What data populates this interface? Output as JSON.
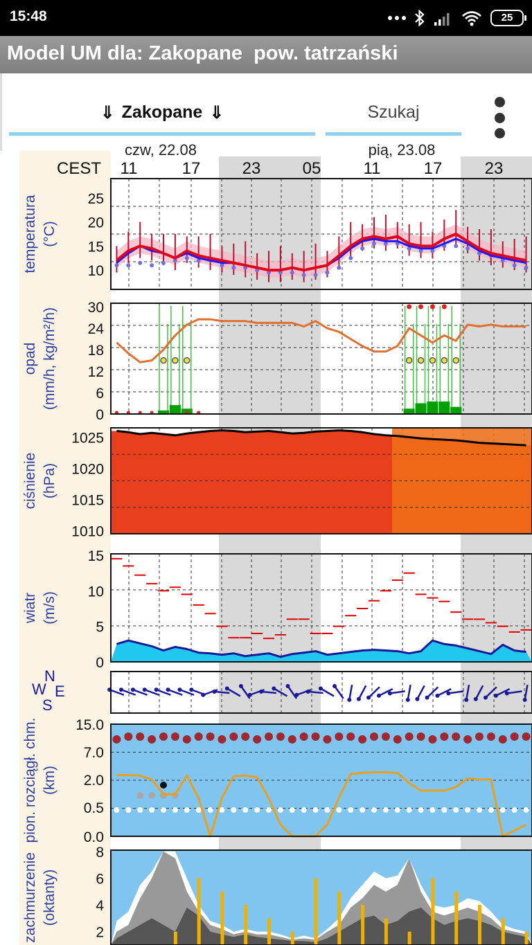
{
  "status_bar": {
    "time": "15:48",
    "battery": "25",
    "icons": [
      "more-dots-icon",
      "bluetooth-icon",
      "signal-icon",
      "wifi-icon",
      "battery-icon"
    ]
  },
  "app_bar": {
    "title": "Model UM dla: Zakopane  pow. tatrzański"
  },
  "controls": {
    "location_arrow_left": "⇓",
    "location_label": "Zakopane",
    "location_arrow_right": "⇓",
    "search_label": "Szukaj",
    "menu_icon": "overflow-menu-icon"
  },
  "chart_data": {
    "type": "line",
    "timezone_label": "CEST",
    "date_header_fragments": [
      "czw, 22.08",
      "pią, 23.08"
    ],
    "time_tick_labels": [
      "11",
      "17",
      "23",
      "05",
      "11",
      "17",
      "23"
    ],
    "panels": [
      {
        "name": "temperature",
        "ylabel": [
          "temperatura",
          "(°C)"
        ],
        "yticks": [
          "25",
          "20",
          "15",
          "10"
        ],
        "ylim": [
          6,
          29
        ],
        "series": [
          {
            "name": "",
            "color": "#e0001c",
            "values": [
              12.0,
              14.0,
              15.0,
              14.5,
              13.5,
              12.5,
              14.0,
              13.0,
              12.5,
              12.0,
              11.5,
              11.0,
              10.5,
              10.0,
              10.0,
              10.5,
              10.0,
              10.5,
              11.0,
              13.0,
              15.0,
              16.5,
              17.0,
              16.5,
              17.0,
              15.5,
              15.0,
              15.0,
              16.5,
              17.5,
              16.0,
              14.5,
              13.5,
              13.0,
              12.5,
              12.0
            ]
          },
          {
            "name": "",
            "color": "#1a1aff",
            "values": [
              11.5,
              13.5,
              15.0,
              14.0,
              13.5,
              12.5,
              13.5,
              12.5,
              12.0,
              11.5,
              11.5,
              11.0,
              10.5,
              10.0,
              10.0,
              10.5,
              10.0,
              10.5,
              11.0,
              12.5,
              14.5,
              16.0,
              16.5,
              16.0,
              16.0,
              15.0,
              14.5,
              14.5,
              15.5,
              16.5,
              15.5,
              14.0,
              13.0,
              12.5,
              12.0,
              11.5
            ]
          },
          {
            "name": "",
            "color": "#6666dd",
            "values": [
              11.0,
              11.0,
              11.5,
              11.0,
              11.5,
              12.0,
              12.5,
              12.0,
              12.0,
              11.0,
              10.5,
              10.5,
              10.0,
              9.5,
              9.5,
              9.5,
              9.0,
              9.0,
              9.5,
              10.5,
              12.5,
              14.5,
              15.5,
              15.5,
              15.5,
              14.5,
              14.0,
              14.0,
              15.0,
              15.0,
              14.5,
              13.5,
              13.0,
              12.0,
              11.0,
              10.5
            ]
          }
        ]
      },
      {
        "name": "precipitation",
        "ylabel": [
          "opad",
          "(mm/h, kg/m²/h)"
        ],
        "yticks": [
          "30",
          "24",
          "18",
          "12",
          "6",
          "0"
        ],
        "ylim": [
          0,
          31
        ],
        "series": [
          {
            "name": "",
            "color": "#e07030",
            "values": [
              20,
              17,
              14.5,
              15,
              18,
              22,
              25,
              26.5,
              26.5,
              26,
              26,
              26,
              25.5,
              25.5,
              25.5,
              25.5,
              24.5,
              26,
              24,
              23,
              21,
              19,
              17.5,
              17.5,
              19,
              24,
              22,
              20,
              22,
              20.5,
              25,
              24.5,
              25,
              24.5,
              24.5,
              24.5
            ]
          },
          {
            "name": "",
            "color": "#00a000",
            "values": [
              0,
              0,
              0,
              0,
              1.0,
              2.5,
              1.5,
              0,
              0,
              0,
              0,
              0,
              0,
              0,
              0,
              0,
              0,
              0,
              0,
              0,
              0,
              0,
              0,
              0,
              0,
              1.5,
              3.0,
              3.5,
              3.5,
              2.0,
              0,
              0,
              0,
              0,
              0,
              0
            ]
          }
        ]
      },
      {
        "name": "pressure",
        "ylabel": [
          "ciśnienie",
          "(hPa)"
        ],
        "yticks": [
          "1025",
          "1020",
          "1015",
          "1010"
        ],
        "ylim": [
          1009.5,
          1026.5
        ],
        "series": [
          {
            "name": "",
            "color": "#000000",
            "values": [
              1026.0,
              1025.8,
              1025.5,
              1025.7,
              1025.5,
              1025.3,
              1025.6,
              1025.8,
              1026.0,
              1026.1,
              1026.0,
              1025.8,
              1025.9,
              1026.0,
              1025.8,
              1025.6,
              1025.7,
              1025.9,
              1026.0,
              1026.1,
              1026.0,
              1025.8,
              1025.5,
              1025.3,
              1025.2,
              1025.0,
              1024.8,
              1024.7,
              1024.6,
              1024.5,
              1024.3,
              1024.1,
              1024.0,
              1023.9,
              1023.8,
              1023.7
            ]
          }
        ]
      },
      {
        "name": "wind",
        "ylabel": [
          "wiatr",
          "(m/s)"
        ],
        "yticks": [
          "15",
          "10",
          "5",
          "0"
        ],
        "ylim": [
          0,
          15.2
        ],
        "series": [
          {
            "name": "",
            "color": "#e00000",
            "values": [
              14.5,
              13.5,
              12.2,
              11.0,
              10.0,
              10.5,
              9.5,
              8.0,
              6.8,
              5.0,
              3.4,
              3.4,
              4.0,
              3.3,
              3.8,
              6.0,
              6.0,
              4.0,
              4.0,
              5.0,
              6.5,
              7.5,
              8.6,
              10.0,
              11.5,
              12.5,
              9.5,
              9.0,
              8.5,
              7.0,
              6.0,
              6.0,
              5.5,
              5.0,
              4.2,
              4.5
            ]
          },
          {
            "name": "",
            "color": "#1a1a99",
            "values": [
              2.5,
              3.0,
              2.6,
              2.2,
              1.6,
              2.1,
              1.8,
              1.3,
              1.2,
              1.0,
              1.2,
              0.8,
              1.0,
              1.2,
              0.7,
              1.1,
              1.3,
              1.5,
              1.0,
              1.2,
              1.4,
              1.6,
              1.7,
              1.6,
              1.5,
              1.2,
              1.5,
              3.0,
              2.5,
              2.3,
              1.9,
              1.5,
              1.1,
              2.4,
              1.6,
              1.4
            ]
          }
        ]
      },
      {
        "name": "wind-direction",
        "compass_labels": [
          "W",
          "N",
          "S",
          "E"
        ]
      },
      {
        "name": "cloud-vertical-extent",
        "ylabel": [
          "pion. rozciągł. chm.",
          "(km)"
        ],
        "yticks": [
          "15.0",
          "7.0",
          "2.0",
          "0.5",
          "0.0"
        ],
        "series": [
          {
            "name": "",
            "color": "#e8a020",
            "values": [
              2.8,
              2.8,
              2.7,
              2.0,
              1.2,
              1.2,
              2.7,
              1.0,
              0.0,
              1.0,
              2.6,
              2.7,
              2.4,
              1.0,
              0.2,
              0.0,
              0.0,
              0.0,
              0.2,
              1.0,
              3.0,
              3.2,
              3.3,
              3.3,
              3.2,
              1.8,
              1.4,
              1.4,
              1.4,
              1.6,
              2.2,
              2.0,
              2.0,
              0.0,
              0.1,
              0.2
            ]
          }
        ]
      },
      {
        "name": "cloud-cover",
        "ylabel": [
          "zachmurzenie",
          "(oktanty)"
        ],
        "yticks": [
          "8",
          "6",
          "4",
          "2"
        ],
        "ylim": [
          1,
          8.1
        ],
        "series": [
          {
            "name": "",
            "color": "#ffffff",
            "values": [
              2.8,
              3.5,
              5.5,
              6.5,
              8.0,
              8.0,
              6.0,
              4.0,
              2.8,
              2.5,
              2.0,
              2.2,
              2.0,
              2.0,
              1.8,
              1.5,
              1.7,
              1.5,
              2.2,
              3.0,
              4.5,
              5.5,
              6.5,
              6.0,
              6.2,
              7.5,
              5.5,
              4.0,
              3.8,
              4.0,
              4.5,
              4.3,
              3.5,
              2.5,
              2.2,
              2.0
            ]
          },
          {
            "name": "",
            "color": "#999999",
            "values": [
              2.0,
              2.5,
              4.5,
              6.0,
              8.0,
              7.5,
              5.0,
              3.5,
              2.5,
              2.2,
              1.8,
              2.0,
              1.8,
              1.8,
              1.6,
              1.4,
              1.5,
              1.4,
              2.0,
              2.5,
              3.8,
              4.5,
              5.5,
              5.0,
              5.5,
              7.5,
              5.0,
              3.5,
              3.2,
              3.5,
              3.8,
              3.5,
              3.0,
              2.2,
              2.0,
              1.8
            ]
          },
          {
            "name": "",
            "color": "#555555",
            "values": [
              1.5,
              2.0,
              2.5,
              3.0,
              2.5,
              2.0,
              3.8,
              3.2,
              2.0,
              1.8,
              1.6,
              1.8,
              1.6,
              1.5,
              1.4,
              1.3,
              1.3,
              1.2,
              1.5,
              2.0,
              2.5,
              3.0,
              3.2,
              2.5,
              2.8,
              3.5,
              3.8,
              3.0,
              2.5,
              2.8,
              3.0,
              2.8,
              2.5,
              2.0,
              1.8,
              1.6
            ]
          }
        ]
      }
    ]
  }
}
